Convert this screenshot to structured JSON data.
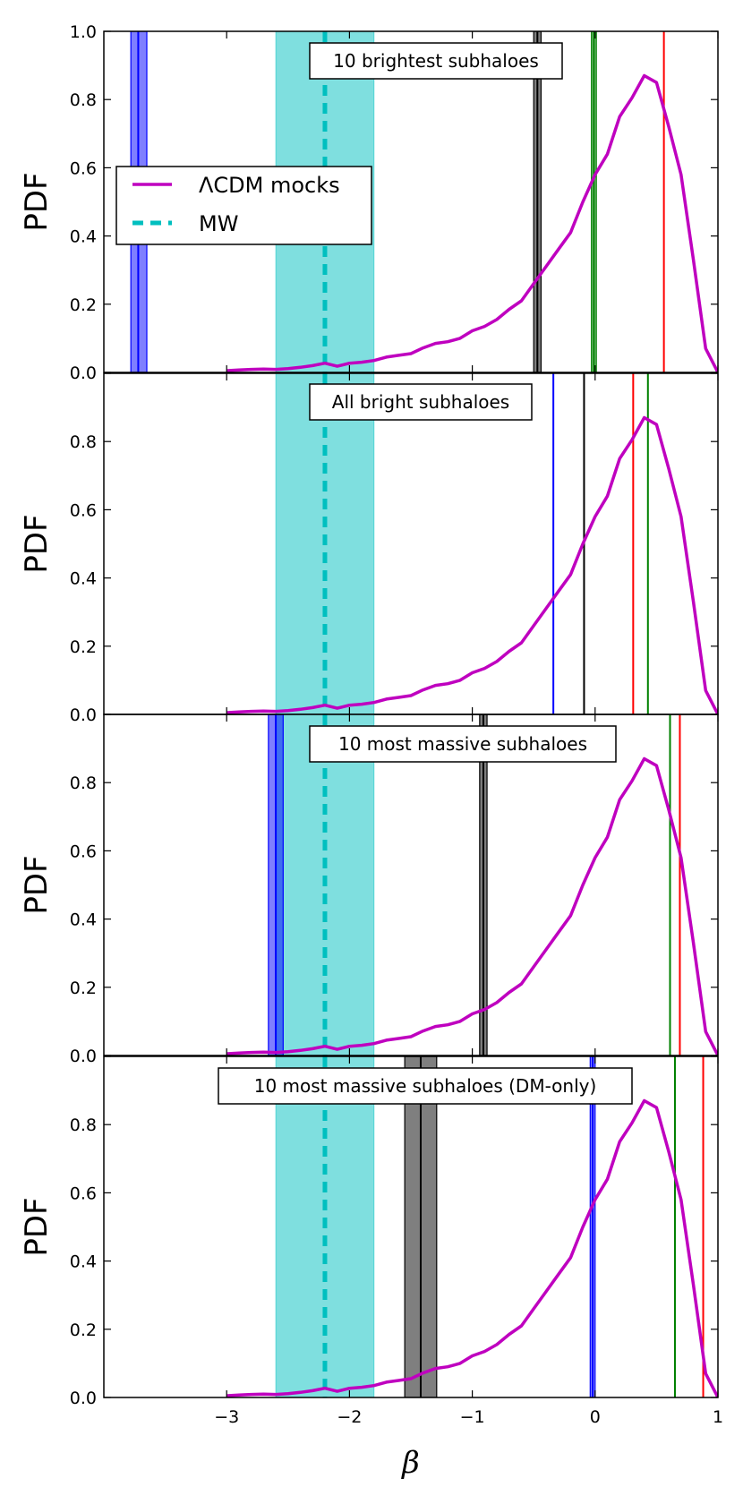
{
  "chart_data": {
    "type": "line",
    "xlabel": "β",
    "xlim": [
      -4.0,
      1.0
    ],
    "x_ticks": [
      -3,
      -2,
      -1,
      0,
      1
    ],
    "x_tick_labels": [
      "−3",
      "−2",
      "−1",
      "0",
      "1"
    ],
    "ylim": [
      0,
      1.0
    ],
    "y_ticks": [
      0.0,
      0.2,
      0.4,
      0.6,
      0.8,
      1.0
    ],
    "y_tick_labels_first": [
      "0.0",
      "0.2",
      "0.4",
      "0.6",
      "0.8",
      "1.0"
    ],
    "y_tick_labels_other": [
      "0.0",
      "0.2",
      "0.4",
      "0.6",
      "0.8",
      ""
    ],
    "legend": {
      "position": "upper-left",
      "entries": [
        {
          "label": "ΛCDM mocks",
          "color": "#bf00bf",
          "style": "solid"
        },
        {
          "label": "MW",
          "color": "#00bfbf",
          "style": "dashed"
        }
      ]
    },
    "mocks_curve": {
      "name": "ΛCDM mocks",
      "color": "#bf00bf",
      "x": [
        -3.0,
        -2.9,
        -2.8,
        -2.7,
        -2.6,
        -2.5,
        -2.4,
        -2.3,
        -2.2,
        -2.1,
        -2.0,
        -1.9,
        -1.8,
        -1.7,
        -1.6,
        -1.5,
        -1.4,
        -1.3,
        -1.2,
        -1.1,
        -1.0,
        -0.9,
        -0.8,
        -0.7,
        -0.6,
        -0.5,
        -0.4,
        -0.3,
        -0.2,
        -0.1,
        0.0,
        0.1,
        0.2,
        0.3,
        0.4,
        0.5,
        0.6,
        0.7,
        0.8,
        0.9,
        1.0
      ],
      "y": [
        0.005,
        0.007,
        0.009,
        0.01,
        0.009,
        0.011,
        0.015,
        0.02,
        0.027,
        0.018,
        0.027,
        0.03,
        0.035,
        0.045,
        0.05,
        0.055,
        0.072,
        0.085,
        0.09,
        0.1,
        0.122,
        0.135,
        0.155,
        0.185,
        0.21,
        0.26,
        0.31,
        0.36,
        0.41,
        0.5,
        0.58,
        0.64,
        0.75,
        0.805,
        0.87,
        0.85,
        0.72,
        0.58,
        0.33,
        0.07,
        0.0
      ]
    },
    "mw": {
      "name": "MW",
      "color": "#00bfbf",
      "band_color": "#7fdfdf",
      "value": -2.2,
      "band": [
        -2.6,
        -1.8
      ]
    },
    "panels": [
      {
        "label": "10 brightest subhaloes",
        "vlines": [
          {
            "color": "#0000ff",
            "value": -3.72,
            "band": [
              -3.78,
              -3.65
            ]
          },
          {
            "color": "#000000",
            "value": -0.47,
            "band": [
              -0.5,
              -0.44
            ]
          },
          {
            "color": "#008000",
            "value": -0.01,
            "band": [
              -0.03,
              0.01
            ]
          },
          {
            "color": "#ff0000",
            "value": 0.56,
            "band": null
          }
        ]
      },
      {
        "label": "All bright subhaloes",
        "vlines": [
          {
            "color": "#0000ff",
            "value": -0.34,
            "band": null
          },
          {
            "color": "#000000",
            "value": -0.09,
            "band": null
          },
          {
            "color": "#ff0000",
            "value": 0.31,
            "band": null
          },
          {
            "color": "#008000",
            "value": 0.43,
            "band": null
          }
        ]
      },
      {
        "label": "10 most massive subhaloes",
        "vlines": [
          {
            "color": "#0000ff",
            "value": -2.6,
            "band": [
              -2.66,
              -2.54
            ]
          },
          {
            "color": "#000000",
            "value": -0.91,
            "band": [
              -0.94,
              -0.88
            ]
          },
          {
            "color": "#008000",
            "value": 0.61,
            "band": null
          },
          {
            "color": "#ff0000",
            "value": 0.69,
            "band": null
          }
        ]
      },
      {
        "label": "10 most massive subhaloes (DM-only)",
        "vlines": [
          {
            "color": "#000000",
            "value": -1.42,
            "band": [
              -1.55,
              -1.29
            ]
          },
          {
            "color": "#0000ff",
            "value": -0.02,
            "band": [
              -0.04,
              0.0
            ]
          },
          {
            "color": "#008000",
            "value": 0.65,
            "band": null
          },
          {
            "color": "#ff0000",
            "value": 0.88,
            "band": null
          }
        ]
      }
    ],
    "ylabel": "PDF"
  }
}
